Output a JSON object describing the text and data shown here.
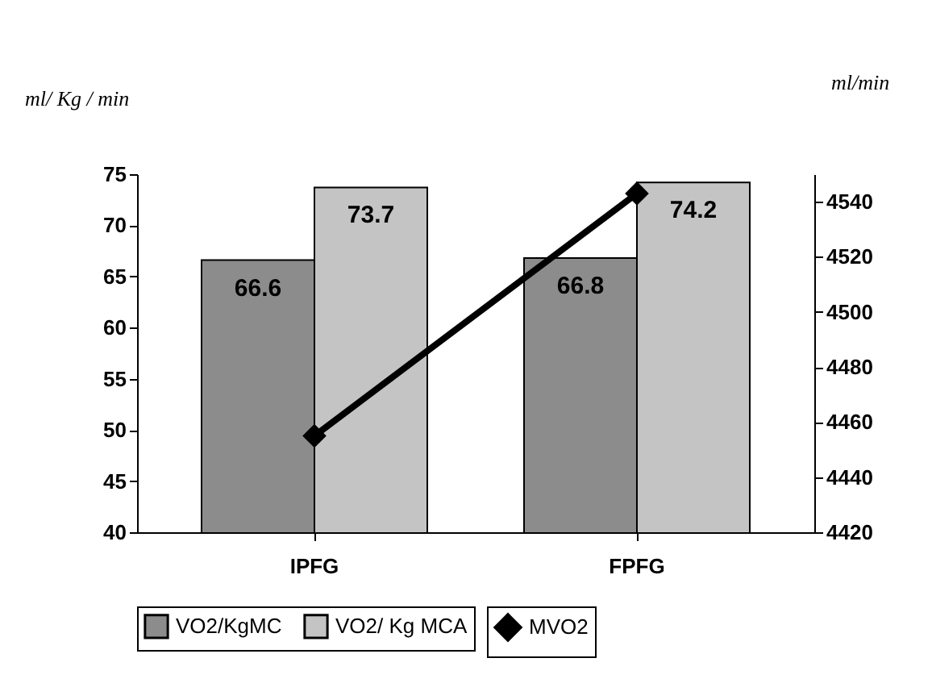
{
  "chart_data": {
    "type": "bar",
    "categories": [
      "IPFG",
      "FPFG"
    ],
    "ylabel": "ml/ Kg / min",
    "y2label": "ml/min",
    "series": [
      {
        "name": "VO2/KgMC",
        "color": "#8c8c8c",
        "values": [
          66.6,
          66.8
        ],
        "value_labels": [
          "66.6",
          "66.8"
        ]
      },
      {
        "name": "VO2/ Kg MCA",
        "color": "#c4c4c4",
        "values": [
          73.7,
          74.2
        ],
        "value_labels": [
          "73.7",
          "74.2"
        ]
      },
      {
        "name": "MVO2",
        "type": "line",
        "axis": "y2",
        "color": "#000000",
        "values": [
          4455,
          4543
        ]
      }
    ],
    "ylim": [
      40,
      75
    ],
    "yticks": [
      40,
      45,
      50,
      55,
      60,
      65,
      70,
      75
    ],
    "y2lim": [
      4420,
      4550
    ],
    "y2ticks": [
      4420,
      4440,
      4460,
      4480,
      4500,
      4520,
      4540
    ],
    "legend": "bottom",
    "marker": "diamond",
    "line_style": "solid",
    "grid": false
  }
}
